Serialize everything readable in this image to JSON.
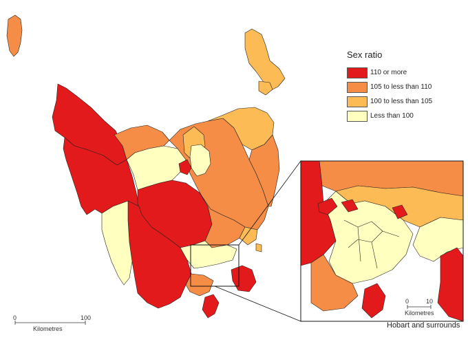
{
  "legend": {
    "title": "Sex ratio",
    "items": [
      {
        "label": "110 or more",
        "color": "#e31a1c"
      },
      {
        "label": "105 to less than 110",
        "color": "#f58d47"
      },
      {
        "label": "100 to less than 105",
        "color": "#fdbb55"
      },
      {
        "label": "Less than 100",
        "color": "#ffffbf"
      }
    ]
  },
  "main_scale": {
    "start": "0",
    "end": "100",
    "unit": "Kilometres"
  },
  "inset": {
    "caption": "Hobart and surrounds",
    "scale": {
      "start": "0",
      "end": "10",
      "unit": "Kilometres"
    }
  }
}
